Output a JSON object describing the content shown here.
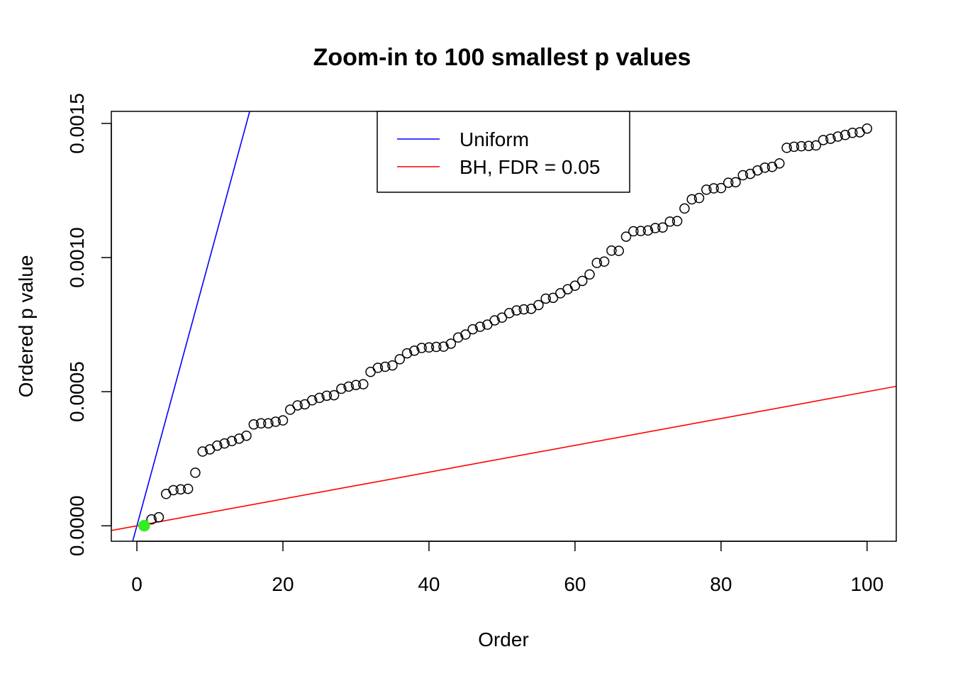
{
  "chart_data": {
    "type": "scatter",
    "title": "Zoom-in to 100 smallest p values",
    "xlabel": "Order",
    "ylabel": "Ordered p value",
    "xlim": [
      -3.5,
      104
    ],
    "ylim": [
      -5.75e-05,
      0.001545
    ],
    "x_ticks": [
      0,
      20,
      40,
      60,
      80,
      100
    ],
    "x_tick_labels": [
      "0",
      "20",
      "40",
      "60",
      "80",
      "100"
    ],
    "y_ticks": [
      0,
      0.0005,
      0.001,
      0.0015
    ],
    "y_tick_labels": [
      "0.0000",
      "0.0005",
      "0.0010",
      "0.0015"
    ],
    "grid": false,
    "legend": {
      "position": "top",
      "entries": [
        {
          "label": "Uniform",
          "color": "#0000ff"
        },
        {
          "label": "BH, FDR = 0.05",
          "color": "#ff0000"
        }
      ]
    },
    "lines": [
      {
        "name": "Uniform",
        "color": "#0000ff",
        "intercept": 0,
        "slope": 0.0001
      },
      {
        "name": "BH, FDR = 0.05",
        "color": "#ff0000",
        "intercept": 0,
        "slope": 5e-06
      }
    ],
    "series": [
      {
        "marker": "open-circle",
        "color": "#000000",
        "x": [
          1,
          2,
          3,
          4,
          5,
          6,
          7,
          8,
          9,
          10,
          11,
          12,
          13,
          14,
          15,
          16,
          17,
          18,
          19,
          20,
          21,
          22,
          23,
          24,
          25,
          26,
          27,
          28,
          29,
          30,
          31,
          32,
          33,
          34,
          35,
          36,
          37,
          38,
          39,
          40,
          41,
          42,
          43,
          44,
          45,
          46,
          47,
          48,
          49,
          50,
          51,
          52,
          53,
          54,
          55,
          56,
          57,
          58,
          59,
          60,
          61,
          62,
          63,
          64,
          65,
          66,
          67,
          68,
          69,
          70,
          71,
          72,
          73,
          74,
          75,
          76,
          77,
          78,
          79,
          80,
          81,
          82,
          83,
          84,
          85,
          86,
          87,
          88,
          89,
          90,
          91,
          92,
          93,
          94,
          95,
          96,
          97,
          98,
          99,
          100
        ],
        "y": [
          5e-07,
          2.4e-05,
          3.2e-05,
          0.000119,
          0.000133,
          0.000136,
          0.000138,
          0.000198,
          0.000277,
          0.000285,
          0.000299,
          0.000307,
          0.000316,
          0.000325,
          0.000336,
          0.000378,
          0.000382,
          0.000382,
          0.000388,
          0.000393,
          0.000433,
          0.000449,
          0.000453,
          0.000468,
          0.000477,
          0.000485,
          0.000487,
          0.000511,
          0.000519,
          0.000525,
          0.000528,
          0.000574,
          0.000589,
          0.000593,
          0.000598,
          0.000621,
          0.000643,
          0.000653,
          0.000663,
          0.000665,
          0.000667,
          0.000668,
          0.000679,
          0.000702,
          0.000713,
          0.000733,
          0.000742,
          0.00075,
          0.000766,
          0.000776,
          0.000793,
          0.000803,
          0.000807,
          0.000809,
          0.000823,
          0.000847,
          0.00085,
          0.000867,
          0.000882,
          0.000895,
          0.000913,
          0.000937,
          0.00098,
          0.000985,
          0.001026,
          0.001025,
          0.001078,
          0.001098,
          0.001099,
          0.001101,
          0.00111,
          0.001112,
          0.001134,
          0.001136,
          0.001183,
          0.001217,
          0.001222,
          0.001253,
          0.001258,
          0.001259,
          0.001279,
          0.001281,
          0.001307,
          0.001312,
          0.001325,
          0.001335,
          0.001338,
          0.001351,
          0.001409,
          0.001413,
          0.001415,
          0.001416,
          0.001418,
          0.001438,
          0.001443,
          0.001451,
          0.001457,
          0.001465,
          0.001467,
          0.001481
        ]
      },
      {
        "marker": "filled-circle",
        "color": "#33ee22",
        "x": [
          1
        ],
        "y": [
          5e-07
        ]
      }
    ]
  }
}
